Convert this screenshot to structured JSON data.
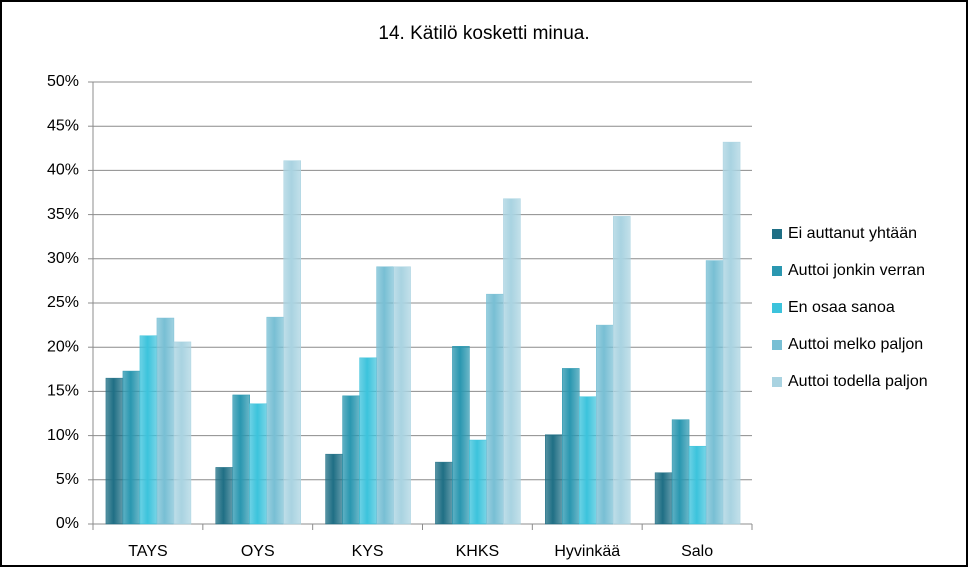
{
  "chart_data": {
    "type": "bar",
    "title": "14. Kätilö kosketti minua.",
    "categories": [
      "TAYS",
      "OYS",
      "KYS",
      "KHKS",
      "Hyvinkää",
      "Salo"
    ],
    "series": [
      {
        "name": "Ei auttanut yhtään",
        "color": "#1f6f85",
        "values": [
          16.5,
          6.4,
          7.9,
          7.0,
          10.1,
          5.8
        ]
      },
      {
        "name": "Auttoi jonkin verran",
        "color": "#2a97b0",
        "values": [
          17.3,
          14.6,
          14.5,
          20.1,
          17.6,
          11.8
        ]
      },
      {
        "name": "En osaa sanoa",
        "color": "#3cc3dc",
        "values": [
          21.3,
          13.6,
          18.8,
          9.5,
          14.4,
          8.8
        ]
      },
      {
        "name": "Auttoi melko paljon",
        "color": "#78bfd4",
        "values": [
          23.3,
          23.4,
          29.1,
          26.0,
          22.5,
          29.8
        ]
      },
      {
        "name": "Auttoi todella paljon",
        "color": "#a9d3e1",
        "values": [
          20.6,
          41.1,
          29.1,
          36.8,
          34.8,
          43.2
        ]
      }
    ],
    "ylim": [
      0,
      50
    ],
    "yticks": [
      {
        "value": 0,
        "label": "0%"
      },
      {
        "value": 5,
        "label": "5%"
      },
      {
        "value": 10,
        "label": "10%"
      },
      {
        "value": 15,
        "label": "15%"
      },
      {
        "value": 20,
        "label": "20%"
      },
      {
        "value": 25,
        "label": "25%"
      },
      {
        "value": 30,
        "label": "30%"
      },
      {
        "value": 35,
        "label": "35%"
      },
      {
        "value": 40,
        "label": "40%"
      },
      {
        "value": 45,
        "label": "45%"
      },
      {
        "value": 50,
        "label": "50%"
      }
    ],
    "grid": true,
    "legend": "right"
  }
}
